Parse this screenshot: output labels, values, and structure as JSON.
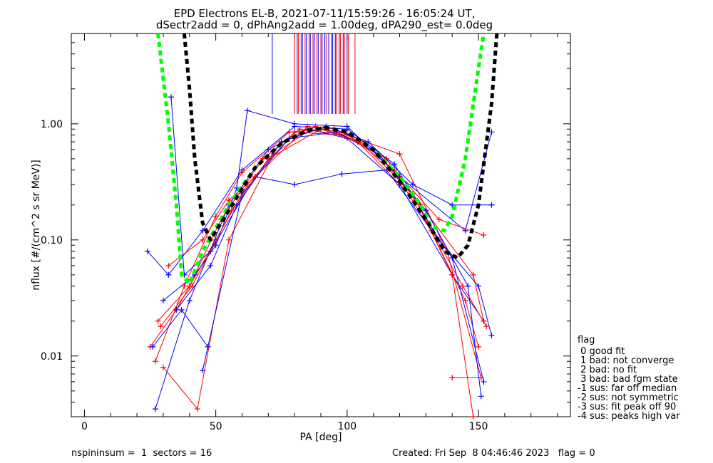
{
  "chart_data": {
    "type": "line",
    "title_line1": "EPD Electrons EL-B, 2021-07-11/15:59:26 - 16:05:24 UT,",
    "title_line2": "dSectr2add = 0, dPhAng2add = 1.00deg, dPA290_est=   0.0deg",
    "xlabel": "PA [deg]",
    "ylabel": "nflux [#/(cm^2 s sr MeV)]",
    "xlim": [
      -5,
      185
    ],
    "ylim": [
      0.003,
      6
    ],
    "y_scale": "log",
    "x_ticks": [
      0,
      50,
      100,
      150
    ],
    "x_tick_labels": [
      "0",
      "50",
      "100",
      "150"
    ],
    "y_ticks": [
      0.01,
      0.1,
      1.0
    ],
    "y_tick_labels": [
      "0.01",
      "0.10",
      "1.00"
    ],
    "colors": {
      "series_a": "#0000ff",
      "series_b": "#ff0000",
      "fit_green": "#00ff00",
      "fit_black": "#000000"
    },
    "fit_curves": [
      {
        "color": "#00ff00",
        "points": [
          [
            28,
            6
          ],
          [
            32,
            1
          ],
          [
            35,
            0.2
          ],
          [
            37,
            0.05
          ],
          [
            40,
            0.042
          ],
          [
            45,
            0.08
          ],
          [
            55,
            0.2
          ],
          [
            65,
            0.42
          ],
          [
            75,
            0.68
          ],
          [
            85,
            0.88
          ],
          [
            92,
            0.92
          ],
          [
            100,
            0.85
          ],
          [
            110,
            0.6
          ],
          [
            120,
            0.35
          ],
          [
            128,
            0.2
          ],
          [
            132,
            0.13
          ],
          [
            137,
            0.12
          ],
          [
            140,
            0.16
          ],
          [
            145,
            0.5
          ],
          [
            150,
            3
          ],
          [
            152,
            6
          ]
        ]
      },
      {
        "color": "#000000",
        "points": [
          [
            38,
            6
          ],
          [
            40,
            2
          ],
          [
            42,
            0.5
          ],
          [
            45,
            0.14
          ],
          [
            48,
            0.1
          ],
          [
            55,
            0.18
          ],
          [
            65,
            0.42
          ],
          [
            75,
            0.68
          ],
          [
            85,
            0.88
          ],
          [
            92,
            0.92
          ],
          [
            100,
            0.85
          ],
          [
            110,
            0.6
          ],
          [
            120,
            0.32
          ],
          [
            130,
            0.15
          ],
          [
            137,
            0.08
          ],
          [
            142,
            0.07
          ],
          [
            146,
            0.09
          ],
          [
            150,
            0.2
          ],
          [
            155,
            1.5
          ],
          [
            157,
            6
          ]
        ]
      }
    ],
    "sample_series": [
      {
        "color": "#0000ff",
        "points": [
          [
            24,
            0.08
          ],
          [
            32,
            0.05
          ],
          [
            45,
            0.12
          ],
          [
            60,
            0.4
          ],
          [
            80,
            0.95
          ],
          [
            100,
            0.9
          ],
          [
            118,
            0.45
          ],
          [
            135,
            0.1
          ],
          [
            150,
            0.04
          ],
          [
            155,
            0.015
          ]
        ]
      },
      {
        "color": "#ff0000",
        "points": [
          [
            25,
            0.012
          ],
          [
            35,
            0.025
          ],
          [
            50,
            0.1
          ],
          [
            62,
            0.3
          ],
          [
            80,
            0.85
          ],
          [
            98,
            0.8
          ],
          [
            115,
            0.5
          ],
          [
            132,
            0.12
          ],
          [
            145,
            0.03
          ],
          [
            150,
            0.012
          ]
        ]
      },
      {
        "color": "#0000ff",
        "points": [
          [
            27,
            0.0035
          ],
          [
            40,
            0.03
          ],
          [
            55,
            0.2
          ],
          [
            70,
            0.6
          ],
          [
            85,
            0.9
          ],
          [
            100,
            0.75
          ],
          [
            120,
            0.3
          ],
          [
            140,
            0.05
          ],
          [
            152,
            0.02
          ]
        ]
      },
      {
        "color": "#ff0000",
        "points": [
          [
            27,
            0.009
          ],
          [
            38,
            0.04
          ],
          [
            50,
            0.16
          ],
          [
            60,
            0.38
          ],
          [
            78,
            0.85
          ],
          [
            95,
            0.92
          ],
          [
            110,
            0.6
          ],
          [
            128,
            0.2
          ],
          [
            148,
            0.05
          ],
          [
            152,
            0.02
          ]
        ]
      },
      {
        "color": "#0000ff",
        "points": [
          [
            30,
            0.03
          ],
          [
            42,
            0.05
          ],
          [
            50,
            0.09
          ],
          [
            58,
            0.28
          ],
          [
            62,
            1.3
          ],
          [
            80,
            1.0
          ],
          [
            100,
            0.95
          ],
          [
            120,
            0.35
          ],
          [
            145,
            0.12
          ],
          [
            155,
            0.85
          ]
        ]
      },
      {
        "color": "#ff0000",
        "points": [
          [
            30,
            0.008
          ],
          [
            43,
            0.0035
          ],
          [
            55,
            0.1
          ],
          [
            72,
            0.55
          ],
          [
            88,
            0.95
          ],
          [
            105,
            0.7
          ],
          [
            125,
            0.25
          ],
          [
            140,
            0.05
          ],
          [
            148,
            0.003
          ]
        ]
      },
      {
        "color": "#0000ff",
        "points": [
          [
            33,
            1.7
          ],
          [
            38,
            0.05
          ],
          [
            48,
            0.08
          ],
          [
            65,
            0.35
          ],
          [
            80,
            0.3
          ],
          [
            98,
            0.37
          ],
          [
            115,
            0.4
          ],
          [
            140,
            0.07
          ],
          [
            152,
            0.006
          ]
        ]
      },
      {
        "color": "#ff0000",
        "points": [
          [
            28,
            0.02
          ],
          [
            40,
            0.04
          ],
          [
            52,
            0.15
          ],
          [
            68,
            0.5
          ],
          [
            82,
            0.9
          ],
          [
            100,
            0.8
          ],
          [
            120,
            0.55
          ],
          [
            138,
            0.08
          ],
          [
            151,
            0.0065
          ],
          [
            140,
            0.0065
          ]
        ]
      },
      {
        "color": "#0000ff",
        "points": [
          [
            26,
            0.012
          ],
          [
            37,
            0.025
          ],
          [
            47,
            0.012
          ],
          [
            45,
            0.0075
          ],
          [
            60,
            0.25
          ],
          [
            78,
            0.75
          ],
          [
            96,
            0.85
          ],
          [
            112,
            0.55
          ],
          [
            130,
            0.18
          ],
          [
            146,
            0.04
          ],
          [
            151,
            0.0045
          ]
        ]
      },
      {
        "color": "#ff0000",
        "points": [
          [
            32,
            0.06
          ],
          [
            45,
            0.1
          ],
          [
            55,
            0.22
          ],
          [
            65,
            0.35
          ],
          [
            85,
            0.95
          ],
          [
            100,
            0.82
          ],
          [
            118,
            0.4
          ],
          [
            135,
            0.15
          ],
          [
            152,
            0.11
          ]
        ]
      },
      {
        "color": "#0000ff",
        "points": [
          [
            35,
            0.025
          ],
          [
            48,
            0.06
          ],
          [
            58,
            0.2
          ],
          [
            75,
            0.7
          ],
          [
            92,
            0.95
          ],
          [
            108,
            0.7
          ],
          [
            125,
            0.3
          ],
          [
            140,
            0.2
          ],
          [
            155,
            0.2
          ]
        ]
      },
      {
        "color": "#ff0000",
        "points": [
          [
            29,
            0.018
          ],
          [
            41,
            0.04
          ],
          [
            56,
            0.18
          ],
          [
            70,
            0.5
          ],
          [
            90,
            0.9
          ],
          [
            104,
            0.7
          ],
          [
            126,
            0.22
          ],
          [
            144,
            0.04
          ],
          [
            153,
            0.018
          ]
        ]
      }
    ],
    "vline_groups": [
      {
        "color": "#0000ff",
        "x": [
          71.5
        ]
      },
      {
        "color": "#ff0000",
        "x": [
          80,
          81.5,
          82.5,
          84,
          85.5,
          87,
          88.5,
          90,
          92,
          94,
          96,
          97.5,
          99,
          100.5,
          103
        ]
      },
      {
        "color": "#0000ff",
        "x": [
          81,
          83,
          84.5,
          86,
          87.5,
          89,
          90.5,
          91.5,
          93,
          94.5,
          95.5,
          97,
          98.5,
          100
        ]
      }
    ],
    "legend": {
      "title": "flag",
      "items": [
        " 0 good fit",
        " 1 bad: not converge",
        " 2 bad: no fit",
        " 3 bad: bad fgm state",
        "-1 sus: far off median",
        "-2 sus: not symmetric",
        "-3 sus: fit peak off 90",
        "-4 sus: peaks high var"
      ]
    },
    "footer": {
      "left": "nspininsum =  1  sectors = 16",
      "right": "Created: Fri Sep  8 04:46:46 2023   flag = 0"
    }
  }
}
